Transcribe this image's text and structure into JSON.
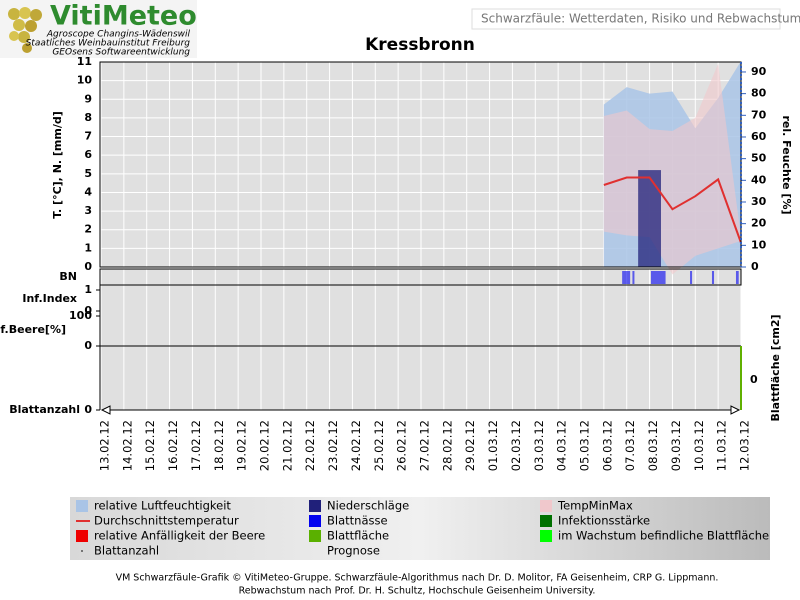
{
  "header": {
    "logo": "VitiMeteo",
    "credits": [
      "Agroscope Changins-Wädenswil",
      "Staatliches Weinbauinstitut Freiburg",
      "GEOsens Softwareentwicklung"
    ],
    "info": "Schwarzfäule: Wetterdaten, Risiko und Rebwachstum"
  },
  "chart_data": {
    "type": "combo",
    "title": "Kressbronn",
    "categories": [
      "13.02.12",
      "14.02.12",
      "15.02.12",
      "16.02.12",
      "17.02.12",
      "18.02.12",
      "19.02.12",
      "20.02.12",
      "21.02.12",
      "22.02.12",
      "23.02.12",
      "24.02.12",
      "25.02.12",
      "26.02.12",
      "27.02.12",
      "28.02.12",
      "29.02.12",
      "01.03.12",
      "02.03.12",
      "03.03.12",
      "04.03.12",
      "05.03.12",
      "06.03.12",
      "07.03.12",
      "08.03.12",
      "09.03.12",
      "10.03.12",
      "11.03.12",
      "12.03.12"
    ],
    "ylabel": "T. [°C], N. [mm/d]",
    "y2label": "rel. Feuchte [%]",
    "ylim": [
      0,
      11
    ],
    "yticks": [
      0,
      1,
      2,
      3,
      4,
      5,
      6,
      7,
      8,
      9,
      10,
      11
    ],
    "y2lim": [
      0,
      94.6
    ],
    "y2ticks": [
      0,
      10,
      20,
      30,
      40,
      50,
      60,
      70,
      80,
      90
    ],
    "grid": true,
    "series": [
      {
        "name": "relative Luftfeuchtigkeit",
        "color": "#a9c4e6",
        "kind": "area",
        "axis": "y2",
        "values": [
          null,
          null,
          null,
          null,
          null,
          null,
          null,
          null,
          null,
          null,
          null,
          null,
          null,
          null,
          null,
          null,
          null,
          null,
          null,
          null,
          null,
          null,
          75,
          83,
          80,
          81,
          64,
          78,
          95
        ]
      },
      {
        "name": "Niederschläge",
        "color": "#20207a",
        "kind": "bar",
        "values": [
          null,
          null,
          null,
          null,
          null,
          null,
          null,
          null,
          null,
          null,
          null,
          null,
          null,
          null,
          null,
          null,
          null,
          null,
          null,
          null,
          null,
          null,
          null,
          null,
          5.2,
          null,
          null,
          null,
          null
        ]
      },
      {
        "name": "TempMinMax",
        "color": "#f0c8cc",
        "kind": "band",
        "values": [
          null,
          null,
          null,
          null,
          null,
          null,
          null,
          null,
          null,
          null,
          null,
          null,
          null,
          null,
          null,
          null,
          null,
          null,
          null,
          null,
          null,
          null,
          8.1,
          8.4,
          7.4,
          7.3,
          8.0,
          10.9,
          1.6
        ],
        "lower": [
          null,
          null,
          null,
          null,
          null,
          null,
          null,
          null,
          null,
          null,
          null,
          null,
          null,
          null,
          null,
          null,
          null,
          null,
          null,
          null,
          null,
          null,
          1.9,
          1.7,
          1.6,
          -0.4,
          0.6,
          1.0,
          1.4
        ]
      },
      {
        "name": "Durchschnittstemperatur",
        "color": "#e03030",
        "kind": "line",
        "values": [
          null,
          null,
          null,
          null,
          null,
          null,
          null,
          null,
          null,
          null,
          null,
          null,
          null,
          null,
          null,
          null,
          null,
          null,
          null,
          null,
          null,
          null,
          4.4,
          4.8,
          4.8,
          3.1,
          3.8,
          4.7,
          1.3
        ]
      },
      {
        "name": "Blattnässe",
        "color": "#0000f0",
        "kind": "strip",
        "intervals": [
          [
            22.8,
            23.15
          ],
          [
            23.25,
            23.33
          ],
          [
            24.06,
            24.7
          ],
          [
            25.77,
            25.86
          ],
          [
            26.73,
            26.82
          ],
          [
            27.78,
            27.9
          ]
        ]
      },
      {
        "name": "Infektionsstärke",
        "color": "#007000",
        "kind": "square"
      },
      {
        "name": "relative Anfälligkeit der Beere",
        "color": "#ee0000",
        "kind": "square"
      },
      {
        "name": "Blattfläche",
        "color": "#5ab000",
        "kind": "square",
        "note": "Prognose"
      },
      {
        "name": "im Wachstum befindliche Blattfläche",
        "color": "#00ff00",
        "kind": "square"
      },
      {
        "name": "Blattanzahl",
        "color": "#555555",
        "kind": "dot"
      }
    ],
    "panels": [
      {
        "label": "BN"
      },
      {
        "label": "Inf.Index",
        "ylim": [
          0,
          1
        ],
        "yticks": [
          0,
          1
        ]
      },
      {
        "label": "Anf.Beere[%]",
        "ylim": [
          0,
          100
        ],
        "yticks": [
          0,
          100
        ]
      },
      {
        "label": "Blattanzahl",
        "yticks": [
          0
        ],
        "y2label": "Blattfläche [cm2]",
        "y2ticks": [
          0
        ]
      }
    ]
  },
  "footer": [
    "VM Schwarzfäule-Grafik © VitiMeteo-Gruppe. Schwarzfäule-Algorithmus nach Dr. D. Molitor, FA Geisenheim, CRP G. Lippmann.",
    "Rebwachstum nach Prof. Dr. H. Schultz, Hochschule Geisenheim University."
  ]
}
